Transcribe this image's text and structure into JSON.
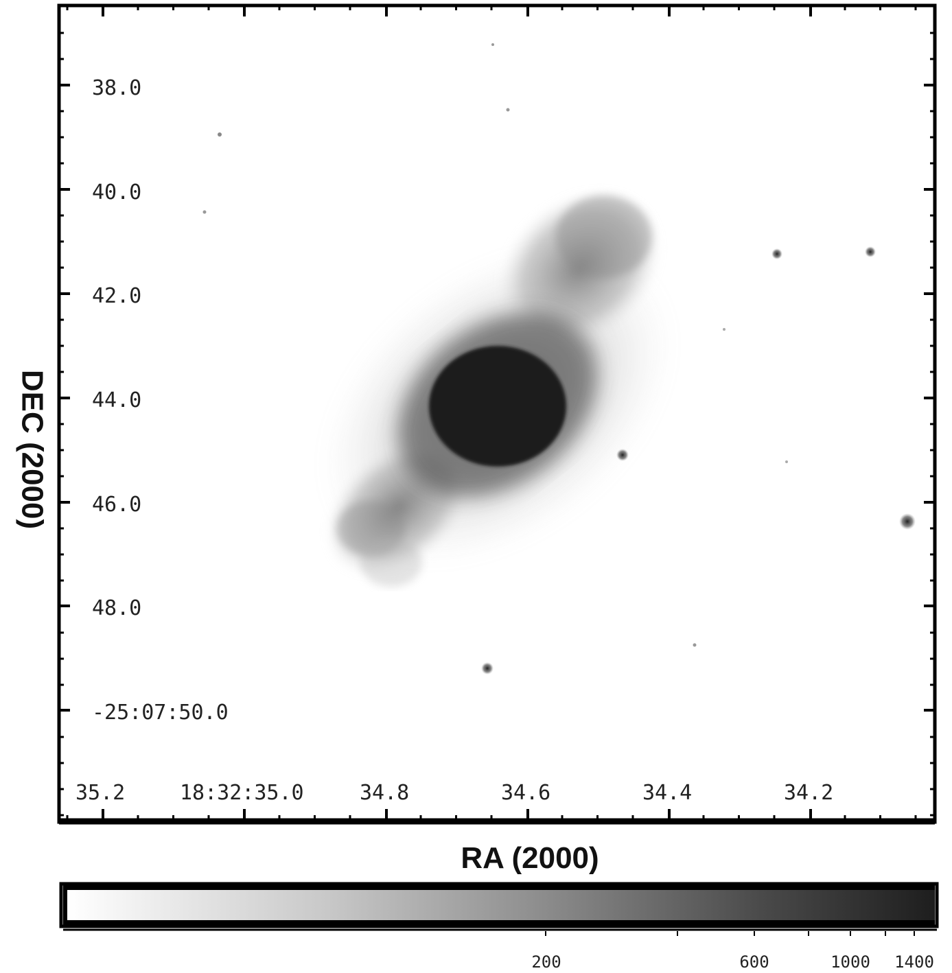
{
  "image": {
    "colormap": "grey-inverted",
    "frame_color": "#000000",
    "background": "#ffffff"
  },
  "axes": {
    "dec": {
      "title": "DEC (2000)",
      "tick_labels": [
        "38.0",
        "40.0",
        "42.0",
        "44.0",
        "46.0",
        "48.0",
        "-25:07:50.0"
      ]
    },
    "ra": {
      "title": "RA (2000)",
      "tick_labels": [
        "35.2",
        "18:32:35.0",
        "34.8",
        "34.6",
        "34.4",
        "34.2"
      ]
    }
  },
  "colorbar": {
    "scale": "log",
    "range": [
      0,
      1400
    ],
    "tick_labels": [
      "200",
      "600",
      "1000",
      "1400"
    ]
  }
}
